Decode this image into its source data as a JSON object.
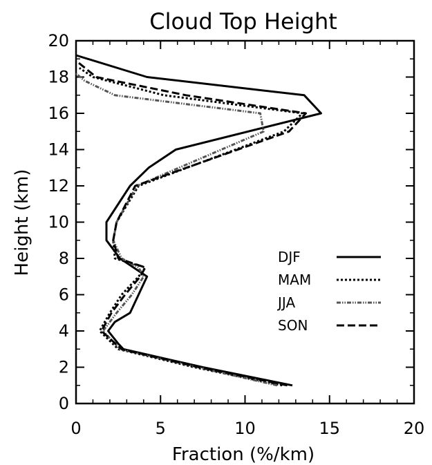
{
  "chart_data": {
    "type": "line",
    "title": "Cloud Top Height",
    "xlabel": "Fraction (%/km)",
    "ylabel": "Height (km)",
    "xlim": [
      0,
      20
    ],
    "ylim": [
      0,
      20
    ],
    "xticks": [
      0,
      5,
      10,
      15,
      20
    ],
    "yticks": [
      0,
      2,
      4,
      6,
      8,
      10,
      12,
      14,
      16,
      18,
      20
    ],
    "grid": false,
    "legend_position": "right-center",
    "series": [
      {
        "name": "DJF",
        "style": "solid",
        "x": [
          12.8,
          7.5,
          2.8,
          2.5,
          1.9,
          2.3,
          3.2,
          4.2,
          2.6,
          1.8,
          1.8,
          3.2,
          4.3,
          5.9,
          14.5,
          13.5,
          4.2,
          0.0
        ],
        "y": [
          1,
          2,
          3,
          3.3,
          4,
          4.5,
          5,
          7,
          8,
          9,
          10,
          12,
          13,
          14,
          16,
          17,
          18,
          19.2
        ]
      },
      {
        "name": "MAM",
        "style": "dotted",
        "x": [
          12.2,
          7.0,
          2.5,
          1.4,
          2.0,
          2.7,
          3.7,
          4.1,
          2.3,
          2.2,
          2.4,
          3.7,
          12.3,
          13.4,
          5.2,
          1.0,
          0.2
        ],
        "y": [
          1,
          2,
          3,
          4,
          5,
          6,
          7,
          7.5,
          8,
          9,
          10,
          12,
          15,
          16,
          17,
          18,
          18.5
        ]
      },
      {
        "name": "JJA",
        "style": "dash-dot-dot",
        "x": [
          11.9,
          7.2,
          2.6,
          1.6,
          2.4,
          3.3,
          4.0,
          3.7,
          2.7,
          2.2,
          2.4,
          3.6,
          11.1,
          10.9,
          2.3,
          0.5,
          0.0
        ],
        "y": [
          1,
          2,
          3,
          4,
          5,
          6,
          7,
          7.5,
          8,
          9,
          10,
          12,
          15,
          16,
          17,
          17.8,
          18.2
        ]
      },
      {
        "name": "SON",
        "style": "dashed",
        "x": [
          12.5,
          7.3,
          2.7,
          1.5,
          2.1,
          2.9,
          3.8,
          4.1,
          2.5,
          2.2,
          2.4,
          3.5,
          12.6,
          13.6,
          6.5,
          1.2,
          0.0
        ],
        "y": [
          1,
          2,
          3,
          4,
          5,
          6,
          7,
          7.5,
          8,
          9,
          10,
          12,
          15,
          16,
          17,
          18,
          18.9
        ]
      }
    ]
  }
}
